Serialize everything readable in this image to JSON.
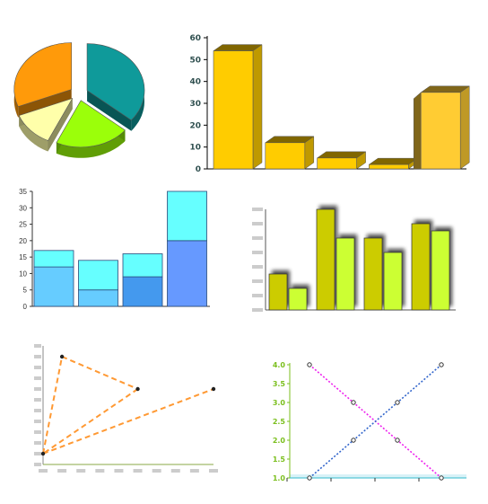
{
  "chart_data": [
    {
      "type": "pie",
      "style": "3d-exploded",
      "slices": [
        {
          "value": 36,
          "color": "#0f9a9a"
        },
        {
          "value": 21,
          "color": "#9bff0a"
        },
        {
          "value": 12,
          "color": "#ffffaa"
        },
        {
          "value": 31,
          "color": "#ff9a0a"
        }
      ]
    },
    {
      "type": "bar",
      "style": "3d",
      "values": [
        54,
        12,
        5,
        2,
        35
      ],
      "ylim": [
        0,
        60
      ],
      "yticks": [
        "0",
        "10",
        "20",
        "30",
        "40",
        "50",
        "60"
      ],
      "colors": [
        "#ffcc00",
        "#ffcc00",
        "#ffcc00",
        "#ffcc00",
        "#ffcc33"
      ]
    },
    {
      "type": "bar",
      "style": "stacked",
      "series": [
        {
          "values": [
            12,
            5,
            9,
            20
          ],
          "colors": [
            "#66ccff",
            "#66ccff",
            "#4499ee",
            "#6699ff"
          ]
        },
        {
          "values": [
            5,
            9,
            7,
            15
          ],
          "color": "#66ffff"
        }
      ],
      "ylim": [
        0,
        35
      ],
      "yticks": [
        "0",
        "5",
        "10",
        "15",
        "20",
        "25",
        "30",
        "35"
      ]
    },
    {
      "type": "bar",
      "style": "grouped-shadow",
      "series": [
        {
          "values": [
            5,
            14,
            10,
            12
          ],
          "color": "#cccc00"
        },
        {
          "values": [
            3,
            10,
            8,
            11
          ],
          "color": "#ccff33"
        }
      ],
      "ylim": [
        0,
        14
      ],
      "tick_labels_visible": false
    },
    {
      "type": "line",
      "style": "dashed",
      "x": [
        0,
        2,
        10,
        18
      ],
      "y": [
        1,
        10,
        7,
        7
      ],
      "order": [
        [
          0,
          1
        ],
        [
          1,
          2
        ],
        [
          2,
          0
        ],
        [
          0,
          3
        ]
      ],
      "color": "#ff9933",
      "xlim": [
        0,
        18
      ],
      "ylim": [
        0,
        11
      ],
      "tick_labels_visible": false
    },
    {
      "type": "line",
      "style": "dotted",
      "series": [
        {
          "x": [
            1,
            2,
            3,
            4
          ],
          "y": [
            4.0,
            3.0,
            2.0,
            1.0
          ],
          "color": "#ee22ee"
        },
        {
          "x": [
            1,
            2,
            3,
            4
          ],
          "y": [
            1.0,
            2.0,
            3.0,
            4.0
          ],
          "color": "#3366cc"
        }
      ],
      "xlim": [
        1,
        4
      ],
      "ylim": [
        1.0,
        4.0
      ],
      "yticks": [
        "1.0",
        "1.5",
        "2.0",
        "2.5",
        "3.0",
        "3.5",
        "4.0"
      ]
    }
  ]
}
